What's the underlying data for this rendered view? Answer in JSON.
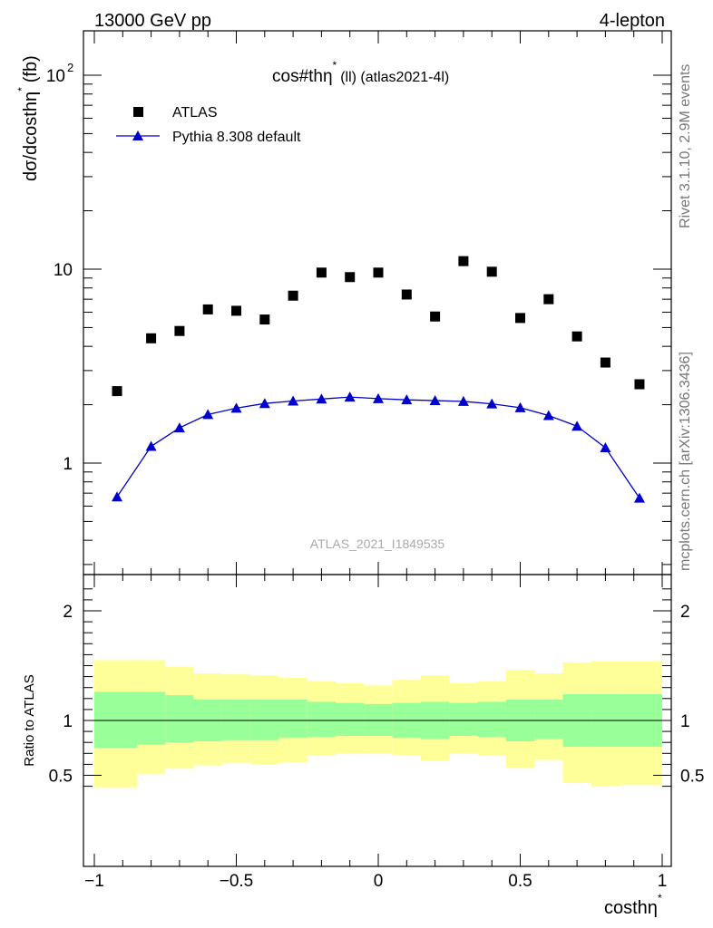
{
  "header": {
    "left": "13000 GeV pp",
    "right": "4-lepton"
  },
  "side_text": {
    "rivet": "Rivet 3.1.10,  2.9M events",
    "mcplots": "mcplots.cern.ch [arXiv:1306.3436]"
  },
  "chart_data": [
    {
      "type": "scatter",
      "title": "cos#thη* (ll) (atlas2021-4l)",
      "title_main": "cos#thη",
      "title_sup": "*",
      "title_rest": "(ll) (atlas2021-4l)",
      "ylabel": "dσ/dcosthη* (fb)",
      "ylabel_main": "dσ/dcosthη",
      "ylabel_sup": "*",
      "ylabel_rest": "(fb)",
      "yscale": "log",
      "ylim": [
        0.35,
        160
      ],
      "xlim": [
        -1,
        1
      ],
      "y_tick_labels": [
        {
          "value": 1,
          "label": "1"
        },
        {
          "value": 10,
          "label": "10"
        },
        {
          "value": 100,
          "label": "10",
          "sup": "2"
        }
      ],
      "watermark": "ATLAS_2021_I1849535",
      "legend_position": "top-left",
      "series": [
        {
          "name": "ATLAS",
          "marker": "square",
          "color": "#000000",
          "x": [
            -0.92,
            -0.8,
            -0.7,
            -0.6,
            -0.5,
            -0.4,
            -0.3,
            -0.2,
            -0.1,
            0.0,
            0.1,
            0.2,
            0.3,
            0.4,
            0.5,
            0.6,
            0.7,
            0.8,
            0.92
          ],
          "y": [
            2.35,
            4.4,
            4.8,
            6.2,
            6.1,
            5.5,
            7.3,
            9.6,
            9.1,
            9.6,
            7.4,
            5.7,
            11.0,
            9.7,
            5.6,
            7.0,
            4.5,
            3.3,
            2.55
          ]
        },
        {
          "name": "Pythia 8.308 default",
          "marker": "triangle",
          "color": "#0000cc",
          "x": [
            -0.92,
            -0.8,
            -0.7,
            -0.6,
            -0.5,
            -0.4,
            -0.3,
            -0.2,
            -0.1,
            0.0,
            0.1,
            0.2,
            0.3,
            0.4,
            0.5,
            0.6,
            0.7,
            0.8,
            0.92
          ],
          "y": [
            0.67,
            1.22,
            1.52,
            1.78,
            1.92,
            2.03,
            2.09,
            2.14,
            2.19,
            2.15,
            2.12,
            2.1,
            2.08,
            2.02,
            1.93,
            1.76,
            1.55,
            1.2,
            0.66
          ]
        }
      ]
    },
    {
      "type": "area",
      "ylabel": "Ratio to ATLAS",
      "xlabel": "costhη*",
      "xlabel_main": "costhη",
      "xlabel_sup": "*",
      "xlim": [
        -1,
        1
      ],
      "ylim": [
        0.37,
        2.3
      ],
      "reference_line": 1,
      "x_tick_labels": [
        "−1",
        "−0.5",
        "0",
        "0.5",
        "1"
      ],
      "y_tick_labels": [
        "0.5",
        "1",
        "2"
      ],
      "bins": [
        -1.0,
        -0.85,
        -0.75,
        -0.65,
        -0.55,
        -0.45,
        -0.35,
        -0.25,
        -0.15,
        -0.05,
        0.05,
        0.15,
        0.25,
        0.35,
        0.45,
        0.55,
        0.65,
        0.75,
        0.85,
        1.0
      ],
      "bands": [
        {
          "name": "total uncertainty",
          "color": "#ffff99",
          "low": [
            0.39,
            0.51,
            0.56,
            0.59,
            0.61,
            0.6,
            0.62,
            0.68,
            0.7,
            0.7,
            0.68,
            0.63,
            0.7,
            0.68,
            0.57,
            0.64,
            0.43,
            0.4,
            0.41
          ],
          "high": [
            1.55,
            1.55,
            1.49,
            1.43,
            1.42,
            1.41,
            1.39,
            1.36,
            1.34,
            1.32,
            1.37,
            1.41,
            1.34,
            1.36,
            1.46,
            1.43,
            1.53,
            1.54,
            1.54
          ]
        },
        {
          "name": "statistical uncertainty",
          "color": "#99ff99",
          "low": [
            0.75,
            0.78,
            0.8,
            0.81,
            0.82,
            0.82,
            0.84,
            0.85,
            0.86,
            0.86,
            0.84,
            0.83,
            0.86,
            0.85,
            0.81,
            0.83,
            0.76,
            0.76,
            0.76
          ],
          "high": [
            1.26,
            1.26,
            1.23,
            1.19,
            1.19,
            1.19,
            1.19,
            1.17,
            1.16,
            1.15,
            1.16,
            1.17,
            1.16,
            1.17,
            1.19,
            1.19,
            1.24,
            1.24,
            1.24
          ]
        }
      ]
    }
  ]
}
